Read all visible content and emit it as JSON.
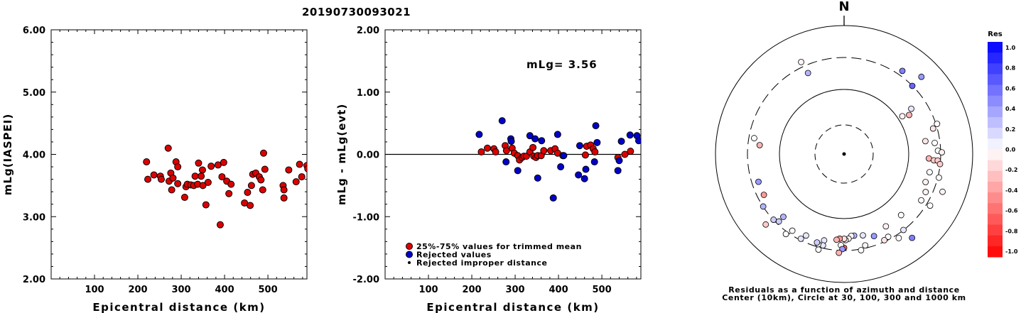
{
  "event_id": "20190730093021",
  "colors": {
    "red": "#dd0000",
    "blue": "#0000cc",
    "ink": "#000000"
  },
  "chart_data": [
    {
      "type": "scatter",
      "title": "",
      "xlabel": "Epicentral distance (km)",
      "ylabel": "mLg(IASPEI)",
      "xlim": [
        0,
        590
      ],
      "ylim": [
        2.0,
        6.0
      ],
      "x_ticks": [
        100,
        200,
        300,
        400,
        500
      ],
      "x_tick_labels": [
        "100",
        "200",
        "300",
        "400",
        "500"
      ],
      "y_ticks": [
        2.0,
        3.0,
        4.0,
        5.0,
        6.0
      ],
      "y_tick_labels": [
        "2.00",
        "3.00",
        "4.00",
        "5.00",
        "6.00"
      ],
      "series": [
        {
          "color": "red",
          "points": [
            [
              220,
              3.88
            ],
            [
              223,
              3.6
            ],
            [
              237,
              3.67
            ],
            [
              252,
              3.65
            ],
            [
              254,
              3.6
            ],
            [
              270,
              4.1
            ],
            [
              272,
              3.57
            ],
            [
              276,
              3.7
            ],
            [
              278,
              3.43
            ],
            [
              281,
              3.62
            ],
            [
              288,
              3.88
            ],
            [
              292,
              3.8
            ],
            [
              292,
              3.53
            ],
            [
              308,
              3.31
            ],
            [
              311,
              3.48
            ],
            [
              314,
              3.52
            ],
            [
              322,
              3.51
            ],
            [
              329,
              3.5
            ],
            [
              332,
              3.65
            ],
            [
              338,
              3.52
            ],
            [
              340,
              3.86
            ],
            [
              346,
              3.65
            ],
            [
              349,
              3.75
            ],
            [
              350,
              3.5
            ],
            [
              357,
              3.19
            ],
            [
              362,
              3.55
            ],
            [
              369,
              3.81
            ],
            [
              385,
              3.83
            ],
            [
              390,
              2.87
            ],
            [
              394,
              3.64
            ],
            [
              398,
              3.87
            ],
            [
              405,
              3.57
            ],
            [
              410,
              3.37
            ],
            [
              415,
              3.52
            ],
            [
              446,
              3.22
            ],
            [
              453,
              3.39
            ],
            [
              459,
              3.18
            ],
            [
              462,
              3.5
            ],
            [
              465,
              3.68
            ],
            [
              472,
              3.7
            ],
            [
              480,
              3.64
            ],
            [
              484,
              3.59
            ],
            [
              488,
              3.43
            ],
            [
              490,
              4.02
            ],
            [
              493,
              3.76
            ],
            [
              535,
              3.5
            ],
            [
              537,
              3.3
            ],
            [
              537,
              3.43
            ],
            [
              548,
              3.75
            ],
            [
              565,
              3.56
            ],
            [
              573,
              3.84
            ],
            [
              578,
              3.64
            ],
            [
              590,
              3.82
            ],
            [
              592,
              3.77
            ]
          ]
        }
      ]
    },
    {
      "type": "scatter",
      "title": "",
      "xlabel": "Epicentral distance (km)",
      "ylabel": "mLg - mLg(evt)",
      "annotation": "mLg= 3.56",
      "xlim": [
        0,
        590
      ],
      "ylim": [
        -2.0,
        2.0
      ],
      "x_ticks": [
        100,
        200,
        300,
        400,
        500
      ],
      "x_tick_labels": [
        "100",
        "200",
        "300",
        "400",
        "500"
      ],
      "y_ticks": [
        -2.0,
        -1.0,
        0.0,
        1.0,
        2.0
      ],
      "y_tick_labels": [
        "-2.00",
        "-1.00",
        "0.00",
        "1.00",
        "2.00"
      ],
      "reference_line_y": 0.0,
      "legend": {
        "position": "bottom-left",
        "items": [
          {
            "marker": "red",
            "label": "25%-75% values for trimmed mean"
          },
          {
            "marker": "blue",
            "label": "Rejected values"
          },
          {
            "marker": "small-black",
            "label": "Rejected improper distance"
          }
        ]
      },
      "series": [
        {
          "color": "red",
          "points": [
            [
              222,
              0.04
            ],
            [
              236,
              0.1
            ],
            [
              251,
              0.09
            ],
            [
              255,
              0.04
            ],
            [
              277,
              0.14
            ],
            [
              280,
              0.06
            ],
            [
              293,
              0.1
            ],
            [
              298,
              0.02
            ],
            [
              306,
              -0.02
            ],
            [
              310,
              -0.09
            ],
            [
              316,
              -0.05
            ],
            [
              320,
              -0.03
            ],
            [
              326,
              -0.03
            ],
            [
              334,
              0.04
            ],
            [
              341,
              0.11
            ],
            [
              343,
              -0.03
            ],
            [
              348,
              -0.05
            ],
            [
              352,
              -0.02
            ],
            [
              360,
              -0.02
            ],
            [
              366,
              0.06
            ],
            [
              382,
              0.06
            ],
            [
              392,
              0.09
            ],
            [
              398,
              0.02
            ],
            [
              410,
              -0.02
            ],
            [
              462,
              -0.01
            ],
            [
              465,
              0.13
            ],
            [
              474,
              0.15
            ],
            [
              480,
              0.09
            ],
            [
              484,
              0.04
            ],
            [
              537,
              -0.05
            ],
            [
              553,
              0.0
            ],
            [
              566,
              0.05
            ]
          ]
        },
        {
          "color": "blue",
          "points": [
            [
              217,
              0.32
            ],
            [
              270,
              0.54
            ],
            [
              279,
              -0.12
            ],
            [
              290,
              0.25
            ],
            [
              291,
              0.21
            ],
            [
              306,
              -0.26
            ],
            [
              334,
              0.3
            ],
            [
              346,
              0.25
            ],
            [
              352,
              -0.38
            ],
            [
              361,
              0.22
            ],
            [
              388,
              -0.7
            ],
            [
              398,
              0.32
            ],
            [
              405,
              -0.2
            ],
            [
              412,
              -0.02
            ],
            [
              446,
              -0.33
            ],
            [
              449,
              0.14
            ],
            [
              460,
              -0.39
            ],
            [
              463,
              -0.24
            ],
            [
              483,
              -0.12
            ],
            [
              486,
              0.46
            ],
            [
              489,
              0.19
            ],
            [
              537,
              -0.26
            ],
            [
              540,
              -0.1
            ],
            [
              545,
              0.21
            ],
            [
              565,
              0.31
            ],
            [
              581,
              0.3
            ],
            [
              585,
              0.22
            ]
          ]
        }
      ]
    },
    {
      "type": "scatter",
      "subtype": "polar",
      "north_label": "N",
      "caption_lines": [
        "Residuals as a function of azimuth and distance",
        "Center (10km), Circle at 30, 100, 300 and 1000 km"
      ],
      "colorbar": {
        "title": "Res",
        "tick_labels": [
          "1.0",
          "0.8",
          "0.6",
          "0.4",
          "0.2",
          "0.0",
          "-0.2",
          "-0.4",
          "-0.6",
          "-0.8",
          "-1.0"
        ],
        "range": [
          -1.0,
          1.0
        ]
      },
      "rings": [
        {
          "label": "30 km",
          "style": "dashed"
        },
        {
          "label": "100 km",
          "style": "solid"
        },
        {
          "label": "300 km",
          "style": "dashed"
        },
        {
          "label": "1000 km",
          "style": "solid"
        }
      ],
      "note": "points: [azimuth_deg, radius_fraction_of_1000km_ring, residual]",
      "points": [
        [
          335,
          0.79,
          -0.05
        ],
        [
          336,
          0.69,
          0.3
        ],
        [
          35,
          0.79,
          0.5
        ],
        [
          45,
          0.85,
          0.4
        ],
        [
          45,
          0.75,
          0.6
        ],
        [
          56,
          0.63,
          0.1
        ],
        [
          59,
          0.59,
          -0.3
        ],
        [
          57,
          0.54,
          -0.05
        ],
        [
          72,
          0.76,
          0.0
        ],
        [
          74,
          0.72,
          -0.1
        ],
        [
          81,
          0.64,
          -0.1
        ],
        [
          83,
          0.71,
          0.0
        ],
        [
          88,
          0.73,
          0.0
        ],
        [
          89,
          0.76,
          -0.05
        ],
        [
          93,
          0.66,
          -0.3
        ],
        [
          94,
          0.7,
          -0.2
        ],
        [
          94,
          0.73,
          -0.2
        ],
        [
          96,
          0.75,
          -0.2
        ],
        [
          102,
          0.68,
          0.0
        ],
        [
          109,
          0.67,
          -0.05
        ],
        [
          104,
          0.76,
          0.0
        ],
        [
          111,
          0.82,
          -0.05
        ],
        [
          115,
          0.7,
          -0.05
        ],
        [
          121,
          0.78,
          0.0
        ],
        [
          121,
          0.7,
          0.0
        ],
        [
          137,
          0.65,
          0.0
        ],
        [
          142,
          0.75,
          0.1
        ],
        [
          141,
          0.84,
          0.5
        ],
        [
          147,
          0.78,
          0.0
        ],
        [
          150,
          0.65,
          -0.05
        ],
        [
          152,
          0.73,
          0.0
        ],
        [
          155,
          0.74,
          -0.1
        ],
        [
          160,
          0.68,
          0.4
        ],
        [
          167,
          0.73,
          -0.05
        ],
        [
          170,
          0.76,
          0.0
        ],
        [
          167,
          0.65,
          0.1
        ],
        [
          173,
          0.64,
          0.3
        ],
        [
          175,
          0.64,
          0.0
        ],
        [
          177,
          0.66,
          -0.05
        ],
        [
          179,
          0.67,
          -0.1
        ],
        [
          180,
          0.73,
          -0.6
        ],
        [
          180,
          0.66,
          -0.1
        ],
        [
          182,
          0.71,
          0.0
        ],
        [
          181,
          0.74,
          0.4
        ],
        [
          183,
          0.66,
          -0.4
        ],
        [
          185,
          0.67,
          -0.3
        ],
        [
          183,
          0.77,
          -0.3
        ],
        [
          193,
          0.69,
          0.1
        ],
        [
          193,
          0.73,
          0.1
        ],
        [
          195,
          0.77,
          0.0
        ],
        [
          196,
          0.73,
          0.0
        ],
        [
          197,
          0.72,
          0.2
        ],
        [
          205,
          0.7,
          0.1
        ],
        [
          207,
          0.74,
          0.1
        ],
        [
          214,
          0.72,
          0.0
        ],
        [
          216,
          0.77,
          0.0
        ],
        [
          224,
          0.73,
          0.2
        ],
        [
          224,
          0.68,
          0.3
        ],
        [
          227,
          0.75,
          0.2
        ],
        [
          237,
          0.75,
          0.3
        ],
        [
          252,
          0.7,
          0.4
        ],
        [
          243,
          0.7,
          -0.4
        ],
        [
          276,
          0.66,
          -0.3
        ],
        [
          280,
          0.71,
          0.0
        ],
        [
          228,
          0.82,
          -0.2
        ]
      ]
    }
  ]
}
